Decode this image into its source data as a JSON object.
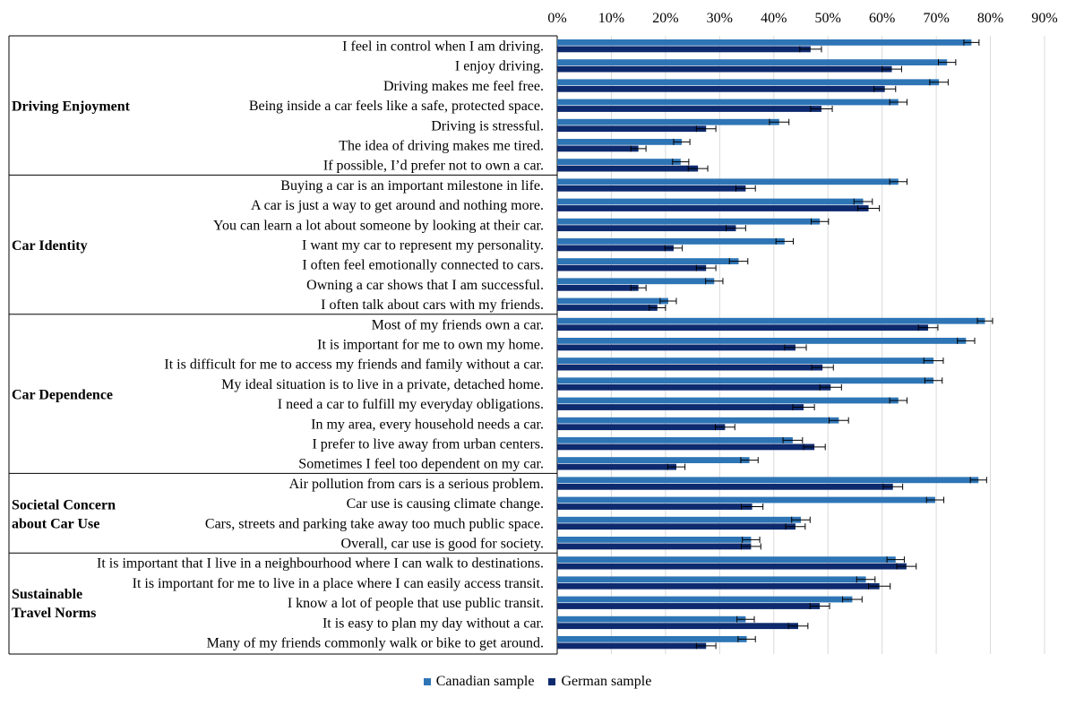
{
  "chart_data": {
    "type": "bar",
    "orientation": "horizontal",
    "x_axis": {
      "min": 0,
      "max": 90,
      "step": 10,
      "unit": "%",
      "position": "top",
      "tick_labels": [
        "0%",
        "10%",
        "20%",
        "30%",
        "40%",
        "50%",
        "60%",
        "70%",
        "80%",
        "90%"
      ]
    },
    "grid": "vertical",
    "error_bars": true,
    "legend_position": "bottom-center",
    "series": [
      {
        "name": "Canadian sample",
        "color": "#2E75B6"
      },
      {
        "name": "German sample",
        "color": "#0E2A6E"
      }
    ],
    "groups": [
      {
        "name": "Driving Enjoyment",
        "items": [
          {
            "label": "I feel in control when I am driving.",
            "values": [
              76.5,
              46.8
            ],
            "errors": [
              1.4,
              2.0
            ]
          },
          {
            "label": "I enjoy driving.",
            "values": [
              72.0,
              61.8
            ],
            "errors": [
              1.6,
              1.8
            ]
          },
          {
            "label": "Driving makes me feel free.",
            "values": [
              70.5,
              60.5
            ],
            "errors": [
              1.7,
              2.0
            ]
          },
          {
            "label": "Being inside a car feels like a safe, protected space.",
            "values": [
              63.0,
              48.8
            ],
            "errors": [
              1.6,
              2.0
            ]
          },
          {
            "label": "Driving is stressful.",
            "values": [
              41.0,
              27.5
            ],
            "errors": [
              1.8,
              1.8
            ]
          },
          {
            "label": "The idea of driving makes me tired.",
            "values": [
              23.0,
              15.0
            ],
            "errors": [
              1.5,
              1.4
            ]
          },
          {
            "label": "If possible, I’d prefer not to own a car.",
            "values": [
              22.8,
              26.0
            ],
            "errors": [
              1.5,
              1.8
            ]
          }
        ]
      },
      {
        "name": "Car Identity",
        "items": [
          {
            "label": "Buying a car is an important milestone in life.",
            "values": [
              63.0,
              34.8
            ],
            "errors": [
              1.6,
              1.8
            ]
          },
          {
            "label": "A car is just a way to get around and nothing more.",
            "values": [
              56.5,
              57.5
            ],
            "errors": [
              1.7,
              2.0
            ]
          },
          {
            "label": "You can learn a lot about someone by looking at their car.",
            "values": [
              48.5,
              33.0
            ],
            "errors": [
              1.6,
              1.8
            ]
          },
          {
            "label": "I want my car to represent my personality.",
            "values": [
              42.0,
              21.5
            ],
            "errors": [
              1.6,
              1.6
            ]
          },
          {
            "label": "I often feel emotionally connected to cars.",
            "values": [
              33.5,
              27.5
            ],
            "errors": [
              1.7,
              1.8
            ]
          },
          {
            "label": "Owning a car shows that I am successful.",
            "values": [
              29.0,
              15.0
            ],
            "errors": [
              1.6,
              1.4
            ]
          },
          {
            "label": "I often talk about cars with my friends.",
            "values": [
              20.5,
              18.5
            ],
            "errors": [
              1.5,
              1.5
            ]
          }
        ]
      },
      {
        "name": "Car Dependence",
        "items": [
          {
            "label": "Most of my friends own a car.",
            "values": [
              79.0,
              68.5
            ],
            "errors": [
              1.4,
              1.8
            ]
          },
          {
            "label": "It is important for me to own my home.",
            "values": [
              75.5,
              44.0
            ],
            "errors": [
              1.6,
              2.0
            ]
          },
          {
            "label": "It is difficult for me to access my friends and family without a car.",
            "values": [
              69.5,
              49.0
            ],
            "errors": [
              1.8,
              2.0
            ]
          },
          {
            "label": "My ideal situation is to live in a private, detached home.",
            "values": [
              69.5,
              50.5
            ],
            "errors": [
              1.6,
              2.0
            ]
          },
          {
            "label": "I need a car to fulfill my everyday obligations.",
            "values": [
              63.0,
              45.5
            ],
            "errors": [
              1.6,
              2.0
            ]
          },
          {
            "label": "In my area, every household needs a car.",
            "values": [
              52.0,
              31.0
            ],
            "errors": [
              1.8,
              1.8
            ]
          },
          {
            "label": "I prefer to live away from urban centers.",
            "values": [
              43.5,
              47.5
            ],
            "errors": [
              1.8,
              2.0
            ]
          },
          {
            "label": "Sometimes I feel too dependent on my car.",
            "values": [
              35.5,
              22.0
            ],
            "errors": [
              1.6,
              1.6
            ]
          }
        ]
      },
      {
        "name": "Societal Concern about Car Use",
        "name_lines": [
          "Societal Concern",
          "about Car Use"
        ],
        "items": [
          {
            "label": "Air pollution from cars is a serious problem.",
            "values": [
              77.8,
              62.0
            ],
            "errors": [
              1.5,
              1.8
            ]
          },
          {
            "label": "Car use is causing climate change.",
            "values": [
              69.8,
              36.0
            ],
            "errors": [
              1.6,
              2.0
            ]
          },
          {
            "label": "Cars, streets and parking take away too much public space.",
            "values": [
              45.0,
              44.0
            ],
            "errors": [
              1.7,
              1.8
            ]
          },
          {
            "label": "Overall, car use is good for society.",
            "values": [
              35.8,
              35.8
            ],
            "errors": [
              1.6,
              1.8
            ]
          }
        ]
      },
      {
        "name": "Sustainable Travel Norms",
        "name_lines": [
          "Sustainable",
          "Travel Norms"
        ],
        "items": [
          {
            "label": "It is important that I live in a neighbourhood where I can walk to destinations.",
            "values": [
              62.5,
              64.5
            ],
            "errors": [
              1.6,
              1.8
            ]
          },
          {
            "label": "It is important for me to live in a place where I can easily access transit.",
            "values": [
              57.0,
              59.5
            ],
            "errors": [
              1.7,
              2.0
            ]
          },
          {
            "label": "I know a lot of people that use public transit.",
            "values": [
              54.5,
              48.5
            ],
            "errors": [
              1.8,
              1.8
            ]
          },
          {
            "label": "It is easy to plan my day without a car.",
            "values": [
              34.8,
              44.5
            ],
            "errors": [
              1.6,
              1.8
            ]
          },
          {
            "label": "Many of my friends commonly walk or bike to get around.",
            "values": [
              35.0,
              27.5
            ],
            "errors": [
              1.6,
              1.8
            ]
          }
        ]
      }
    ]
  }
}
